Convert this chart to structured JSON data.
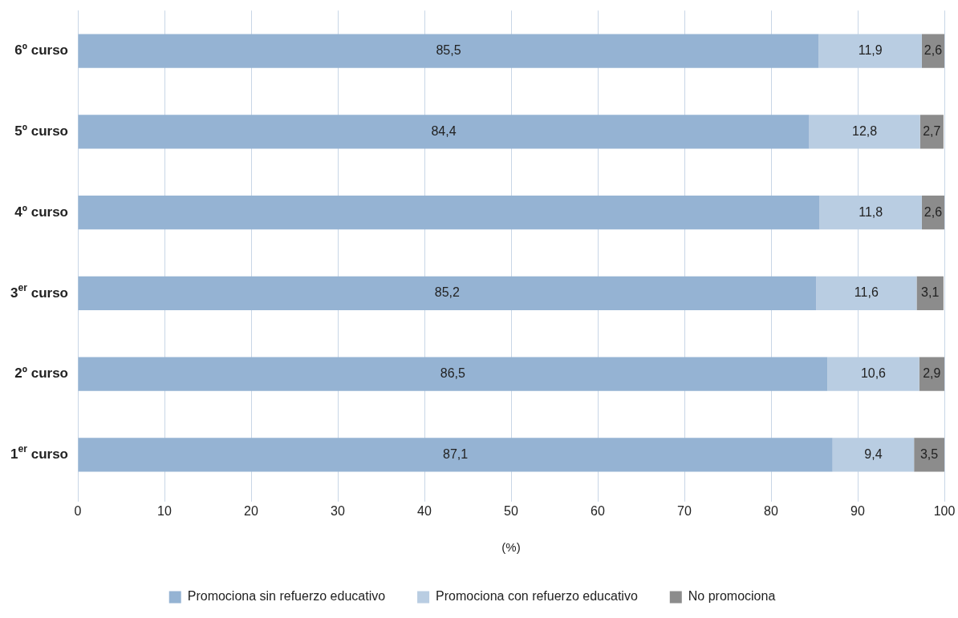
{
  "chart_data": {
    "type": "bar",
    "orientation": "horizontal",
    "stacked": true,
    "xlabel": "(%)",
    "categories": [
      "6º curso",
      "5º curso",
      "4º curso",
      "3$^{er}$ curso",
      "2º curso",
      "1$^{er}$ curso"
    ],
    "series": [
      {
        "name": "Promociona sin refuerzo educativo",
        "color": "#95b3d3",
        "values": [
          85.5,
          84.4,
          85.6,
          85.2,
          86.5,
          87.1
        ],
        "value_labels": [
          "85,5",
          "84,4",
          null,
          "85,2",
          "86,5",
          "87,1"
        ]
      },
      {
        "name": "Promociona con refuerzo educativo",
        "color": "#b9cde2",
        "values": [
          11.9,
          12.8,
          11.8,
          11.6,
          10.6,
          9.4
        ],
        "value_labels": [
          "11,9",
          "12,8",
          "11,8",
          "11,6",
          "10,6",
          "9,4"
        ]
      },
      {
        "name": "No promociona",
        "color": "#8c8c8c",
        "values": [
          2.6,
          2.7,
          2.6,
          3.1,
          2.9,
          3.5
        ],
        "value_labels": [
          "2,6",
          "2,7",
          "2,6",
          "3,1",
          "2,9",
          "3,5"
        ]
      }
    ],
    "xlim": [
      0,
      100
    ],
    "xticks": [
      0,
      10,
      20,
      30,
      40,
      50,
      60,
      70,
      80,
      90,
      100
    ],
    "grid": "x",
    "legend": "bottom"
  }
}
